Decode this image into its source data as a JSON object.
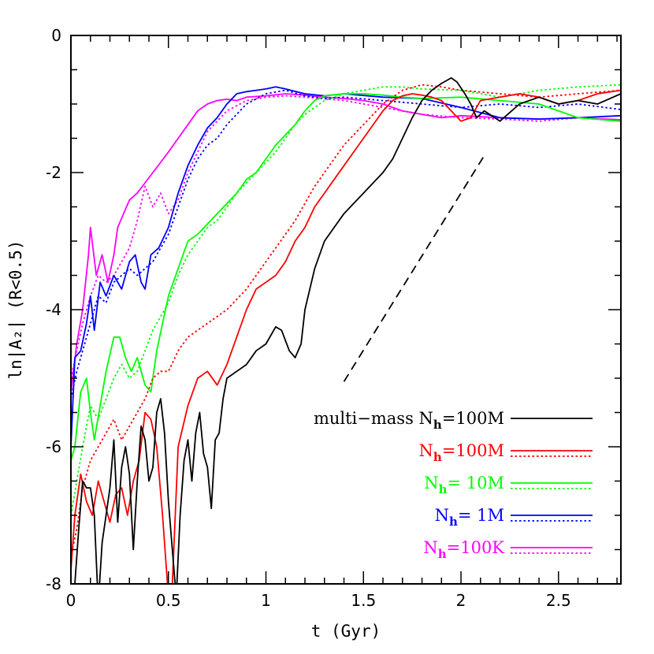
{
  "chart_data": {
    "type": "line",
    "xlabel": "t (Gyr)",
    "ylabel": "ln|A₂| (R<0.5)",
    "xlim": [
      0,
      2.82
    ],
    "ylim": [
      -8,
      0
    ],
    "x_ticks": [
      {
        "value": 0,
        "label": "0"
      },
      {
        "value": 0.5,
        "label": "0.5"
      },
      {
        "value": 1,
        "label": "1"
      },
      {
        "value": 1.5,
        "label": "1.5"
      },
      {
        "value": 2,
        "label": "2"
      },
      {
        "value": 2.5,
        "label": "2.5"
      }
    ],
    "y_ticks": [
      {
        "value": 0,
        "label": "0"
      },
      {
        "value": -2,
        "label": "-2"
      },
      {
        "value": -4,
        "label": "-4"
      },
      {
        "value": -6,
        "label": "-6"
      },
      {
        "value": -8,
        "label": "-8"
      }
    ],
    "series": [
      {
        "name": "",
        "color": "#ff00ff",
        "dash": "solid",
        "x": [
          0,
          0.03,
          0.06,
          0.09,
          0.1,
          0.13,
          0.16,
          0.19,
          0.22,
          0.24,
          0.27,
          0.3,
          0.34,
          0.38,
          0.42,
          0.46,
          0.5,
          0.55,
          0.6,
          0.65,
          0.7,
          0.75,
          0.8,
          0.85,
          0.9,
          1.0,
          1.1,
          1.2,
          1.3,
          1.4,
          1.5,
          1.6,
          1.7,
          1.8,
          1.9,
          2.0,
          2.2,
          2.4,
          2.6,
          2.82
        ],
        "y": [
          -5.2,
          -4.5,
          -4.0,
          -3.2,
          -2.8,
          -3.5,
          -3.2,
          -3.6,
          -3.2,
          -2.8,
          -2.6,
          -2.4,
          -2.3,
          -2.15,
          -2.0,
          -1.85,
          -1.7,
          -1.5,
          -1.3,
          -1.1,
          -1.0,
          -0.95,
          -0.93,
          -0.95,
          -0.9,
          -0.88,
          -0.85,
          -0.87,
          -0.9,
          -0.92,
          -0.95,
          -1.0,
          -1.1,
          -1.15,
          -1.2,
          -1.17,
          -1.2,
          -1.22,
          -1.2,
          -1.23
        ]
      },
      {
        "name": "",
        "color": "#ff00ff",
        "dash": "dotted",
        "x": [
          0,
          0.03,
          0.06,
          0.1,
          0.14,
          0.18,
          0.22,
          0.26,
          0.3,
          0.34,
          0.38,
          0.42,
          0.46,
          0.5,
          0.55,
          0.6,
          0.65,
          0.7,
          0.8,
          0.9,
          1.0,
          1.1,
          1.2,
          1.4,
          1.6,
          1.8,
          2.0,
          2.2,
          2.4,
          2.6,
          2.82
        ],
        "y": [
          -5.0,
          -4.6,
          -4.2,
          -3.8,
          -3.5,
          -3.6,
          -3.5,
          -3.3,
          -3.1,
          -2.7,
          -2.2,
          -2.5,
          -2.3,
          -2.6,
          -2.4,
          -2.0,
          -1.7,
          -1.4,
          -1.1,
          -0.95,
          -0.9,
          -0.88,
          -0.9,
          -0.95,
          -1.05,
          -1.15,
          -1.2,
          -1.22,
          -1.25,
          -1.2,
          -1.25
        ]
      },
      {
        "name": "",
        "color": "#0000ff",
        "dash": "solid",
        "x": [
          0,
          0.02,
          0.05,
          0.08,
          0.1,
          0.12,
          0.15,
          0.18,
          0.22,
          0.26,
          0.3,
          0.33,
          0.36,
          0.38,
          0.41,
          0.45,
          0.5,
          0.55,
          0.6,
          0.65,
          0.7,
          0.75,
          0.8,
          0.85,
          0.9,
          0.95,
          1.0,
          1.05,
          1.1,
          1.2,
          1.3,
          1.4,
          1.6,
          1.8,
          2.0,
          2.2,
          2.4,
          2.6,
          2.82
        ],
        "y": [
          -6.0,
          -4.7,
          -4.6,
          -4.2,
          -3.8,
          -4.3,
          -3.6,
          -3.8,
          -3.5,
          -3.7,
          -3.3,
          -3.2,
          -3.6,
          -3.7,
          -3.2,
          -3.1,
          -2.8,
          -2.3,
          -1.9,
          -1.6,
          -1.35,
          -1.2,
          -1.0,
          -0.85,
          -0.82,
          -0.8,
          -0.78,
          -0.75,
          -0.78,
          -0.85,
          -0.88,
          -0.85,
          -0.9,
          -0.92,
          -1.05,
          -1.2,
          -1.22,
          -1.2,
          -1.17
        ]
      },
      {
        "name": "",
        "color": "#0000ff",
        "dash": "dotted",
        "x": [
          0,
          0.03,
          0.06,
          0.1,
          0.14,
          0.18,
          0.22,
          0.26,
          0.3,
          0.34,
          0.38,
          0.42,
          0.46,
          0.5,
          0.55,
          0.6,
          0.65,
          0.7,
          0.75,
          0.8,
          0.85,
          0.9,
          1.0,
          1.1,
          1.2,
          1.3,
          1.4,
          1.6,
          1.8,
          2.0,
          2.2,
          2.4,
          2.6,
          2.82
        ],
        "y": [
          -5.3,
          -4.9,
          -4.6,
          -4.2,
          -3.8,
          -3.9,
          -3.6,
          -3.5,
          -3.4,
          -3.5,
          -3.4,
          -3.3,
          -3.1,
          -2.9,
          -2.5,
          -2.1,
          -1.8,
          -1.6,
          -1.5,
          -1.3,
          -1.15,
          -1.0,
          -0.85,
          -0.8,
          -0.88,
          -0.92,
          -0.9,
          -0.95,
          -1.0,
          -1.05,
          -1.0,
          -1.05,
          -1.0,
          -1.08
        ]
      },
      {
        "name": "",
        "color": "#00ff00",
        "dash": "solid",
        "x": [
          0,
          0.02,
          0.05,
          0.08,
          0.1,
          0.12,
          0.15,
          0.18,
          0.22,
          0.25,
          0.28,
          0.31,
          0.34,
          0.38,
          0.41,
          0.44,
          0.47,
          0.5,
          0.55,
          0.6,
          0.65,
          0.7,
          0.75,
          0.8,
          0.85,
          0.9,
          0.95,
          1.0,
          1.05,
          1.1,
          1.15,
          1.2,
          1.25,
          1.3,
          1.4,
          1.5,
          1.6,
          1.7,
          1.8,
          2.0,
          2.2,
          2.4,
          2.6,
          2.82
        ],
        "y": [
          -6.2,
          -6.0,
          -5.2,
          -5.0,
          -5.5,
          -5.9,
          -5.4,
          -4.9,
          -4.4,
          -4.4,
          -4.7,
          -4.9,
          -4.7,
          -5.1,
          -5.2,
          -4.6,
          -4.2,
          -3.8,
          -3.4,
          -3.0,
          -2.9,
          -2.75,
          -2.6,
          -2.45,
          -2.3,
          -2.1,
          -2.0,
          -1.8,
          -1.6,
          -1.45,
          -1.3,
          -1.1,
          -0.95,
          -0.88,
          -0.85,
          -0.85,
          -0.87,
          -0.9,
          -0.92,
          -0.9,
          -0.95,
          -1.0,
          -1.2,
          -1.25
        ]
      },
      {
        "name": "",
        "color": "#00ff00",
        "dash": "dotted",
        "x": [
          0,
          0.03,
          0.06,
          0.1,
          0.14,
          0.18,
          0.22,
          0.26,
          0.3,
          0.34,
          0.38,
          0.42,
          0.46,
          0.5,
          0.55,
          0.6,
          0.65,
          0.7,
          0.75,
          0.8,
          0.85,
          0.9,
          0.95,
          1.0,
          1.05,
          1.1,
          1.15,
          1.2,
          1.3,
          1.4,
          1.5,
          1.6,
          1.7,
          1.8,
          2.0,
          2.2,
          2.4,
          2.6,
          2.82
        ],
        "y": [
          -7.0,
          -6.5,
          -6.0,
          -5.4,
          -5.6,
          -5.3,
          -5.0,
          -4.8,
          -5.0,
          -4.9,
          -4.6,
          -4.3,
          -4.1,
          -3.9,
          -3.5,
          -3.2,
          -3.0,
          -2.8,
          -2.7,
          -2.5,
          -2.3,
          -2.15,
          -2.0,
          -1.85,
          -1.7,
          -1.5,
          -1.3,
          -1.15,
          -0.95,
          -0.85,
          -0.8,
          -0.75,
          -0.75,
          -0.78,
          -0.8,
          -0.9,
          -0.8,
          -0.75,
          -0.72
        ]
      },
      {
        "name": "",
        "color": "#ff0000",
        "dash": "solid",
        "x": [
          0,
          0.02,
          0.05,
          0.08,
          0.11,
          0.14,
          0.17,
          0.2,
          0.23,
          0.26,
          0.29,
          0.32,
          0.35,
          0.38,
          0.41,
          0.44,
          0.47,
          0.5,
          0.52,
          0.55,
          0.6,
          0.65,
          0.7,
          0.75,
          0.8,
          0.85,
          0.9,
          0.95,
          1.0,
          1.05,
          1.1,
          1.15,
          1.2,
          1.25,
          1.3,
          1.35,
          1.4,
          1.45,
          1.5,
          1.55,
          1.6,
          1.65,
          1.7,
          1.75,
          1.8,
          1.85,
          1.9,
          1.95,
          2.0,
          2.05,
          2.1,
          2.2,
          2.3,
          2.4,
          2.5,
          2.6,
          2.7,
          2.82
        ],
        "y": [
          -7.8,
          -7.0,
          -6.4,
          -6.8,
          -7.0,
          -6.5,
          -6.8,
          -7.1,
          -6.7,
          -6.6,
          -7.0,
          -6.5,
          -6.2,
          -5.5,
          -5.6,
          -6.0,
          -7.0,
          -8.2,
          -8.0,
          -6.0,
          -5.4,
          -5.0,
          -4.9,
          -5.1,
          -4.8,
          -4.4,
          -4.0,
          -3.7,
          -3.6,
          -3.5,
          -3.3,
          -3.0,
          -2.8,
          -2.5,
          -2.3,
          -2.1,
          -1.9,
          -1.7,
          -1.5,
          -1.3,
          -1.1,
          -0.95,
          -0.88,
          -0.85,
          -0.87,
          -0.9,
          -0.95,
          -1.1,
          -1.25,
          -1.2,
          -0.95,
          -0.9,
          -0.85,
          -0.9,
          -1.0,
          -0.95,
          -0.85,
          -0.8
        ]
      },
      {
        "name": "",
        "color": "#ff0000",
        "dash": "dotted",
        "x": [
          0,
          0.03,
          0.06,
          0.1,
          0.14,
          0.18,
          0.22,
          0.26,
          0.3,
          0.34,
          0.38,
          0.42,
          0.46,
          0.5,
          0.55,
          0.6,
          0.65,
          0.7,
          0.75,
          0.8,
          0.85,
          0.9,
          0.95,
          1.0,
          1.05,
          1.1,
          1.15,
          1.2,
          1.25,
          1.3,
          1.35,
          1.4,
          1.45,
          1.5,
          1.55,
          1.6,
          1.7,
          1.8,
          1.9,
          2.0,
          2.2,
          2.4,
          2.6,
          2.82
        ],
        "y": [
          -7.6,
          -7.2,
          -6.6,
          -6.2,
          -6.0,
          -5.8,
          -5.6,
          -5.9,
          -5.7,
          -5.5,
          -5.3,
          -5.0,
          -4.9,
          -4.9,
          -4.6,
          -4.4,
          -4.3,
          -4.2,
          -4.1,
          -4.0,
          -3.85,
          -3.7,
          -3.5,
          -3.3,
          -3.1,
          -2.9,
          -2.7,
          -2.45,
          -2.2,
          -2.0,
          -1.8,
          -1.6,
          -1.45,
          -1.3,
          -1.15,
          -1.0,
          -0.8,
          -0.72,
          -0.75,
          -0.8,
          -0.85,
          -0.9,
          -0.85,
          -0.8
        ]
      },
      {
        "name": "",
        "color": "#000000",
        "dash": "solid",
        "x": [
          0,
          0.02,
          0.04,
          0.06,
          0.08,
          0.1,
          0.12,
          0.14,
          0.16,
          0.18,
          0.2,
          0.22,
          0.24,
          0.26,
          0.28,
          0.3,
          0.32,
          0.34,
          0.36,
          0.38,
          0.4,
          0.42,
          0.44,
          0.46,
          0.48,
          0.5,
          0.52,
          0.54,
          0.56,
          0.58,
          0.6,
          0.62,
          0.64,
          0.66,
          0.68,
          0.7,
          0.72,
          0.74,
          0.76,
          0.78,
          0.8,
          0.85,
          0.9,
          0.95,
          1.0,
          1.05,
          1.08,
          1.12,
          1.15,
          1.18,
          1.2,
          1.25,
          1.3,
          1.35,
          1.4,
          1.45,
          1.5,
          1.55,
          1.6,
          1.65,
          1.7,
          1.75,
          1.8,
          1.85,
          1.9,
          1.95,
          1.98,
          2.02,
          2.05,
          2.08,
          2.12,
          2.2,
          2.3,
          2.4,
          2.5,
          2.6,
          2.7,
          2.82
        ],
        "y": [
          -8.5,
          -8.0,
          -7.2,
          -6.5,
          -6.6,
          -6.6,
          -7.0,
          -8.3,
          -7.4,
          -7.0,
          -6.6,
          -5.9,
          -7.1,
          -6.3,
          -6.0,
          -6.4,
          -7.5,
          -6.5,
          -5.7,
          -5.9,
          -6.5,
          -6.3,
          -5.5,
          -5.3,
          -5.8,
          -6.8,
          -7.5,
          -8.2,
          -7.0,
          -6.2,
          -5.9,
          -6.5,
          -5.8,
          -5.5,
          -6.1,
          -6.3,
          -6.9,
          -5.9,
          -5.8,
          -5.3,
          -5.0,
          -4.9,
          -4.8,
          -4.6,
          -4.5,
          -4.25,
          -4.3,
          -4.6,
          -4.7,
          -4.5,
          -4.0,
          -3.4,
          -3.0,
          -2.8,
          -2.6,
          -2.45,
          -2.3,
          -2.15,
          -2.0,
          -1.8,
          -1.5,
          -1.2,
          -0.95,
          -0.8,
          -0.7,
          -0.62,
          -0.68,
          -0.85,
          -1.0,
          -1.2,
          -1.1,
          -1.25,
          -1.0,
          -0.9,
          -1.0,
          -0.95,
          -1.0,
          -0.85
        ]
      },
      {
        "name": "",
        "color": "#000000",
        "dash": "dashed",
        "x": [
          1.4,
          2.12
        ],
        "y": [
          -5.05,
          -1.75
        ]
      }
    ],
    "legend": {
      "placement": "bottom-right",
      "entries": [
        {
          "label": "multi−mass N",
          "sub": "h",
          "suffix": "=100M",
          "color": "#000000",
          "text_color": "#000000",
          "dotted": false
        },
        {
          "label": "N",
          "sub": "h",
          "suffix": "=100M",
          "color": "#ff0000",
          "text_color": "#ff0000",
          "dotted": true
        },
        {
          "label": "N",
          "sub": "h",
          "suffix": "=  10M",
          "color": "#00ff00",
          "text_color": "#00ff00",
          "dotted": true
        },
        {
          "label": "N",
          "sub": "h",
          "suffix": "=    1M",
          "color": "#0000ff",
          "text_color": "#0000ff",
          "dotted": true
        },
        {
          "label": "N",
          "sub": "h",
          "suffix": "=100K",
          "color": "#ff00ff",
          "text_color": "#ff00ff",
          "dotted": true
        }
      ]
    }
  }
}
